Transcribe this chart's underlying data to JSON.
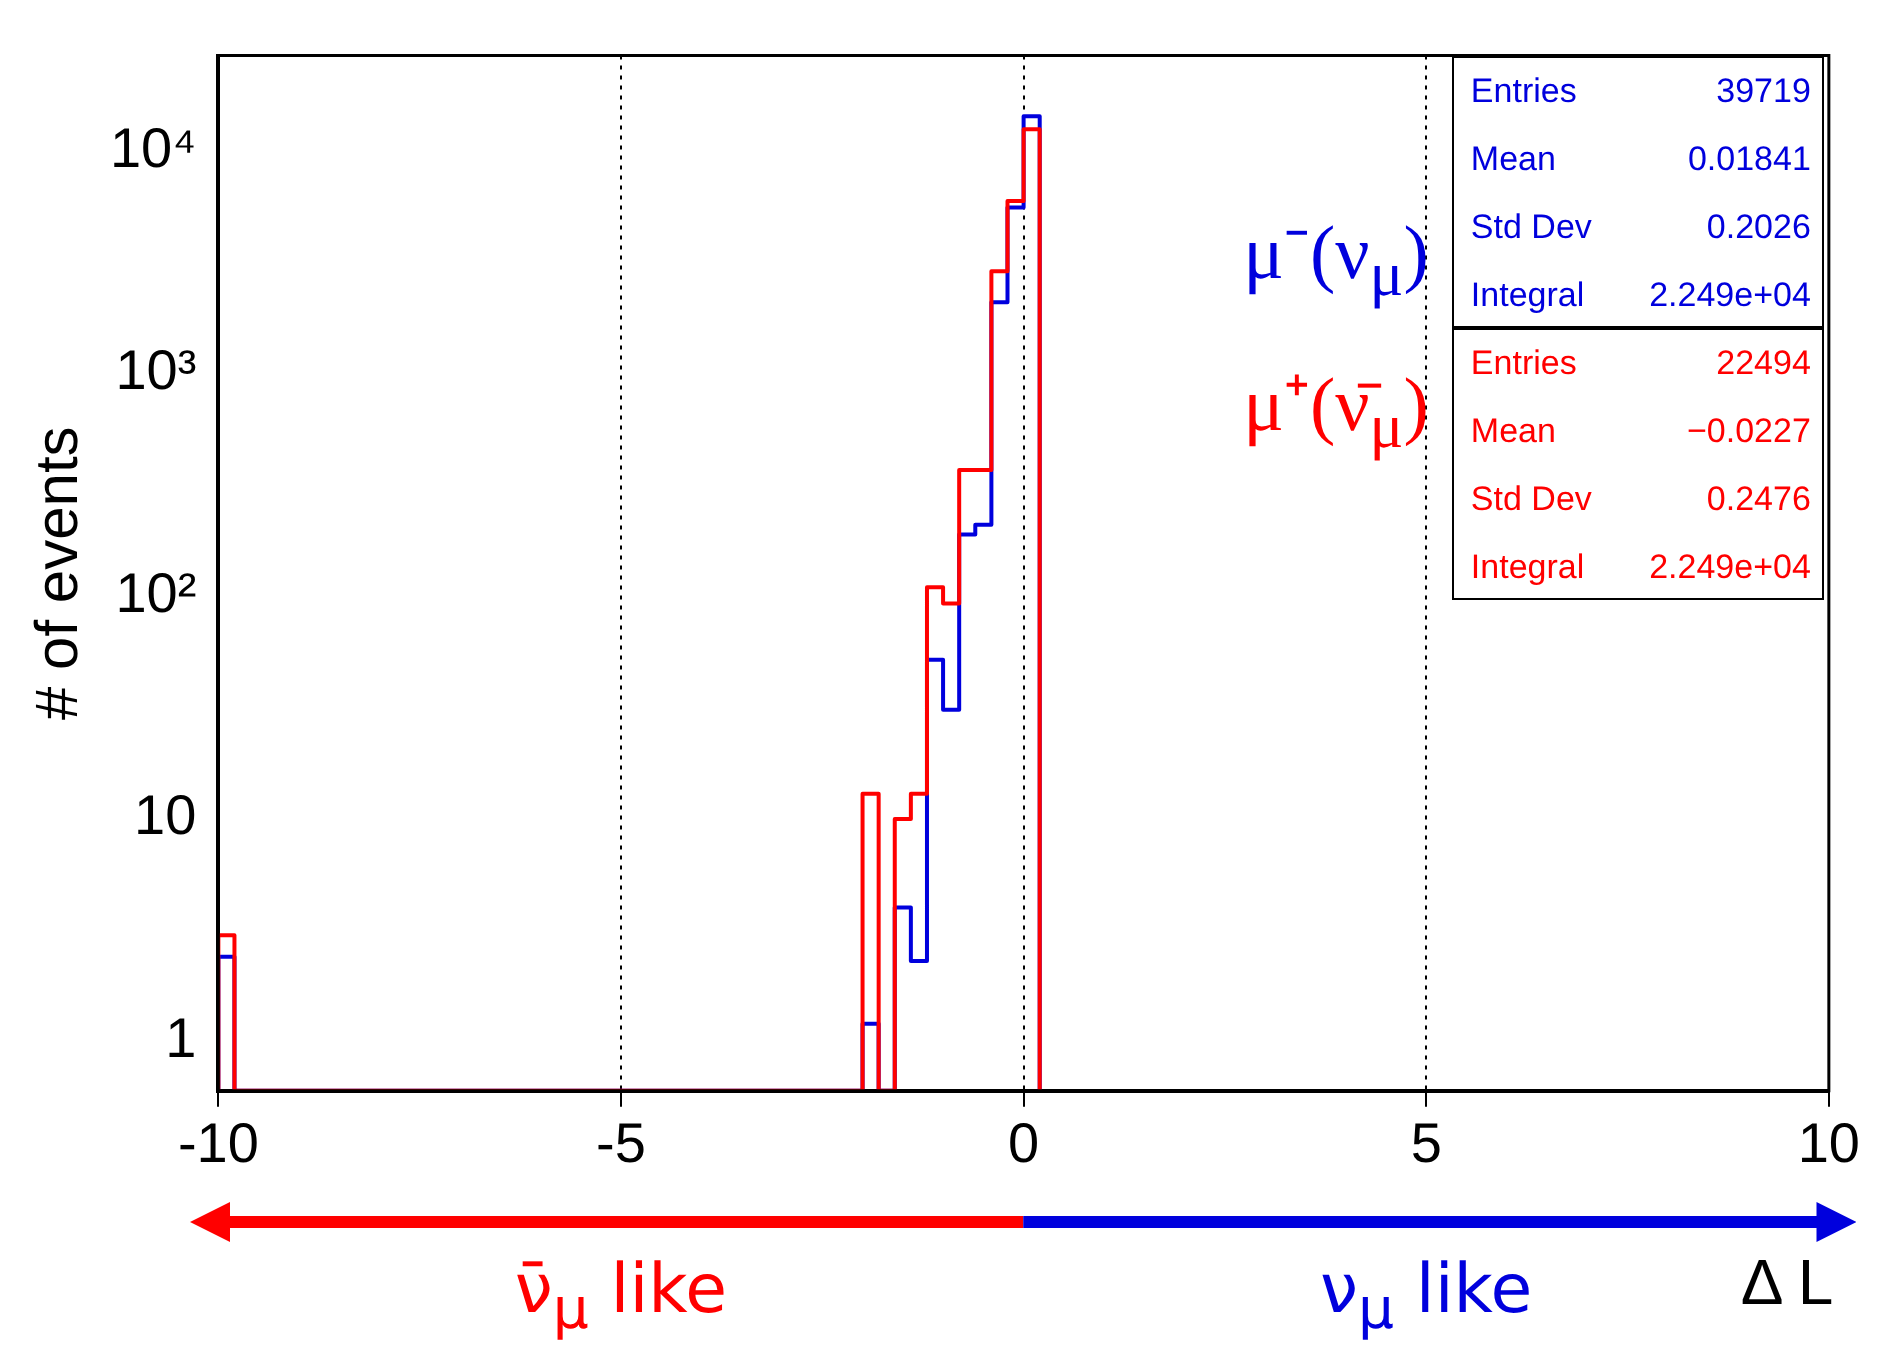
{
  "chart_data": {
    "type": "histogram",
    "ylabel": "# of events",
    "xlabel": "Δ L",
    "log": true,
    "grid": "x",
    "legend": false,
    "bins": [
      -10,
      -9.8,
      -2.0,
      -1.8,
      -1.6,
      -1.4,
      -1.2,
      -1.0,
      -0.8,
      -0.6,
      -0.4,
      -0.2,
      0,
      0.2
    ],
    "xlim": [
      -10,
      10
    ],
    "xticks": [
      -10,
      -5,
      0,
      5,
      10
    ],
    "ylim": [
      0.6,
      27000
    ],
    "yticks": [
      1,
      10,
      {
        "value": 100,
        "label": "10²"
      },
      {
        "value": 1000,
        "label": "10³"
      },
      {
        "value": 10000,
        "label": "10⁴"
      }
    ],
    "series": [
      {
        "name": "μ⁻(ν$_{μ}$)",
        "color": "#0000dd",
        "values": [
          2.4,
          null,
          1.2,
          null,
          4,
          2.3,
          52,
          31,
          190,
          210,
          2100,
          5600,
          14400
        ]
      },
      {
        "name": "μ⁺(ν̄$_{μ}$)",
        "color": "#ff0000",
        "values": [
          3,
          null,
          13,
          null,
          10,
          13,
          110,
          93,
          370,
          370,
          2900,
          6000,
          12600
        ]
      }
    ],
    "annotations": [
      "Entries 39719",
      "Mean 0.01841",
      "Std Dev 0.2026",
      "Integral 2.249e+04",
      "Entries 22494",
      "Mean −0.0227",
      "Std Dev 0.2476",
      "Integral 2.249e+04",
      "ν̄$_{μ}$ like",
      "ν$_{μ}$ like"
    ]
  }
}
